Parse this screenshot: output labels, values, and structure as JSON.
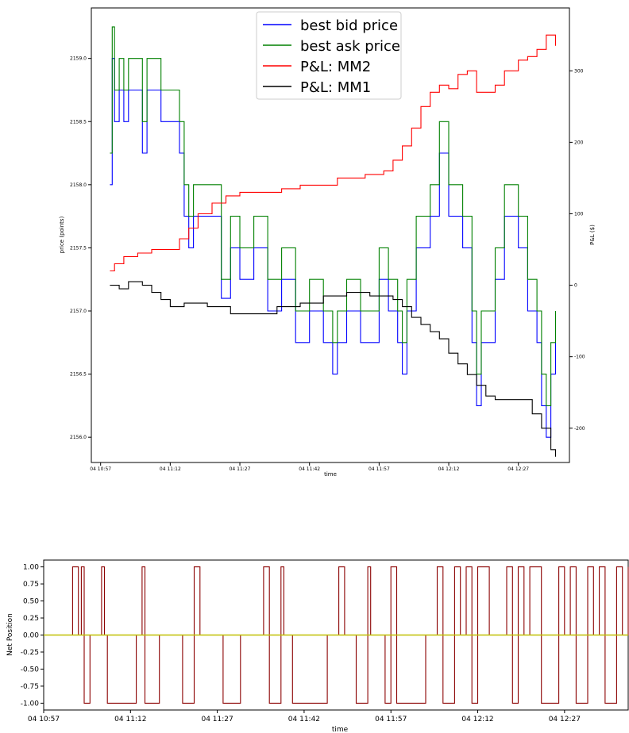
{
  "chart_data": [
    {
      "type": "line",
      "title": "",
      "xlabel": "time",
      "ylabel": "price (points)",
      "y2label": "P&L ($)",
      "x_ticks": [
        "04 10:57",
        "04 11:12",
        "04 11:27",
        "04 11:42",
        "04 11:57",
        "04 12:12",
        "04 12:27"
      ],
      "x_range": [
        "10:55",
        "12:38"
      ],
      "y_ticks": [
        "2156.0",
        "2156.5",
        "2157.0",
        "2157.5",
        "2158.0",
        "2158.5",
        "2159.0"
      ],
      "y2_ticks": [
        "-200",
        "-100",
        "0",
        "100",
        "200",
        "300"
      ],
      "ylim": [
        2155.8,
        2159.4
      ],
      "y2lim": [
        -248,
        388
      ],
      "grid": false,
      "legend_position": "top-center",
      "series": [
        {
          "name": "best bid price",
          "axis": "left",
          "color": "#0000ff",
          "points": [
            [
              "10:59",
              2158.0
            ],
            [
              "10:59.5",
              2159.0
            ],
            [
              "11:00",
              2158.5
            ],
            [
              "11:01",
              2158.75
            ],
            [
              "11:02",
              2158.5
            ],
            [
              "11:03",
              2158.75
            ],
            [
              "11:06",
              2158.25
            ],
            [
              "11:07",
              2158.75
            ],
            [
              "11:10",
              2158.5
            ],
            [
              "11:13",
              2158.5
            ],
            [
              "11:14",
              2158.25
            ],
            [
              "11:15",
              2157.75
            ],
            [
              "11:16",
              2157.5
            ],
            [
              "11:17",
              2157.75
            ],
            [
              "11:22",
              2157.75
            ],
            [
              "11:23",
              2157.1
            ],
            [
              "11:25",
              2157.5
            ],
            [
              "11:27",
              2157.25
            ],
            [
              "11:30",
              2157.5
            ],
            [
              "11:33",
              2157.0
            ],
            [
              "11:36",
              2157.25
            ],
            [
              "11:39",
              2156.75
            ],
            [
              "11:42",
              2157.0
            ],
            [
              "11:45",
              2156.75
            ],
            [
              "11:47",
              2156.5
            ],
            [
              "11:48",
              2156.75
            ],
            [
              "11:50",
              2157.0
            ],
            [
              "11:53",
              2156.75
            ],
            [
              "11:57",
              2157.25
            ],
            [
              "11:59",
              2157.0
            ],
            [
              "12:01",
              2156.75
            ],
            [
              "12:02",
              2156.5
            ],
            [
              "12:03",
              2157.0
            ],
            [
              "12:05",
              2157.5
            ],
            [
              "12:08",
              2157.75
            ],
            [
              "12:10",
              2158.25
            ],
            [
              "12:12",
              2157.75
            ],
            [
              "12:15",
              2157.5
            ],
            [
              "12:17",
              2156.75
            ],
            [
              "12:18",
              2156.25
            ],
            [
              "12:19",
              2156.75
            ],
            [
              "12:20",
              2156.75
            ],
            [
              "12:22",
              2157.25
            ],
            [
              "12:24",
              2157.75
            ],
            [
              "12:27",
              2157.5
            ],
            [
              "12:29",
              2157.0
            ],
            [
              "12:31",
              2156.75
            ],
            [
              "12:32",
              2156.25
            ],
            [
              "12:33",
              2156.0
            ],
            [
              "12:34",
              2156.5
            ],
            [
              "12:35",
              2156.75
            ]
          ]
        },
        {
          "name": "best ask price",
          "axis": "left",
          "color": "#008000",
          "points": [
            [
              "10:59",
              2158.25
            ],
            [
              "10:59.5",
              2159.25
            ],
            [
              "11:00",
              2158.75
            ],
            [
              "11:01",
              2159.0
            ],
            [
              "11:02",
              2158.75
            ],
            [
              "11:03",
              2159.0
            ],
            [
              "11:06",
              2158.5
            ],
            [
              "11:07",
              2159.0
            ],
            [
              "11:10",
              2158.75
            ],
            [
              "11:13",
              2158.75
            ],
            [
              "11:14",
              2158.5
            ],
            [
              "11:15",
              2158.0
            ],
            [
              "11:16",
              2157.75
            ],
            [
              "11:17",
              2158.0
            ],
            [
              "11:22",
              2158.0
            ],
            [
              "11:23",
              2157.25
            ],
            [
              "11:25",
              2157.75
            ],
            [
              "11:27",
              2157.5
            ],
            [
              "11:30",
              2157.75
            ],
            [
              "11:33",
              2157.25
            ],
            [
              "11:36",
              2157.5
            ],
            [
              "11:39",
              2157.0
            ],
            [
              "11:42",
              2157.25
            ],
            [
              "11:45",
              2157.0
            ],
            [
              "11:47",
              2156.75
            ],
            [
              "11:48",
              2157.0
            ],
            [
              "11:50",
              2157.25
            ],
            [
              "11:53",
              2157.0
            ],
            [
              "11:57",
              2157.5
            ],
            [
              "11:59",
              2157.25
            ],
            [
              "12:01",
              2157.0
            ],
            [
              "12:02",
              2156.75
            ],
            [
              "12:03",
              2157.25
            ],
            [
              "12:05",
              2157.75
            ],
            [
              "12:08",
              2158.0
            ],
            [
              "12:10",
              2158.5
            ],
            [
              "12:12",
              2158.0
            ],
            [
              "12:15",
              2157.75
            ],
            [
              "12:17",
              2157.0
            ],
            [
              "12:18",
              2156.5
            ],
            [
              "12:19",
              2157.0
            ],
            [
              "12:20",
              2157.0
            ],
            [
              "12:22",
              2157.5
            ],
            [
              "12:24",
              2158.0
            ],
            [
              "12:27",
              2157.75
            ],
            [
              "12:29",
              2157.25
            ],
            [
              "12:31",
              2157.0
            ],
            [
              "12:32",
              2156.5
            ],
            [
              "12:33",
              2156.25
            ],
            [
              "12:34",
              2156.75
            ],
            [
              "12:35",
              2157.0
            ]
          ]
        },
        {
          "name": "P&L: MM2",
          "axis": "right",
          "color": "#ff0000",
          "points": [
            [
              "10:59",
              20
            ],
            [
              "11:00",
              30
            ],
            [
              "11:02",
              40
            ],
            [
              "11:05",
              45
            ],
            [
              "11:08",
              50
            ],
            [
              "11:12",
              50
            ],
            [
              "11:14",
              65
            ],
            [
              "11:16",
              80
            ],
            [
              "11:18",
              100
            ],
            [
              "11:21",
              115
            ],
            [
              "11:24",
              125
            ],
            [
              "11:27",
              130
            ],
            [
              "11:32",
              130
            ],
            [
              "11:36",
              135
            ],
            [
              "11:40",
              140
            ],
            [
              "11:46",
              140
            ],
            [
              "11:48",
              150
            ],
            [
              "11:54",
              155
            ],
            [
              "11:58",
              160
            ],
            [
              "12:00",
              175
            ],
            [
              "12:02",
              195
            ],
            [
              "12:04",
              220
            ],
            [
              "12:06",
              250
            ],
            [
              "12:08",
              270
            ],
            [
              "12:10",
              280
            ],
            [
              "12:12",
              275
            ],
            [
              "12:14",
              295
            ],
            [
              "12:16",
              300
            ],
            [
              "12:18",
              270
            ],
            [
              "12:20",
              270
            ],
            [
              "12:22",
              280
            ],
            [
              "12:24",
              300
            ],
            [
              "12:27",
              315
            ],
            [
              "12:29",
              320
            ],
            [
              "12:31",
              330
            ],
            [
              "12:33",
              350
            ],
            [
              "12:35",
              335
            ]
          ]
        },
        {
          "name": "P&L: MM1",
          "axis": "right",
          "color": "#000000",
          "points": [
            [
              "10:59",
              0
            ],
            [
              "11:01",
              -5
            ],
            [
              "11:03",
              5
            ],
            [
              "11:06",
              0
            ],
            [
              "11:08",
              -10
            ],
            [
              "11:10",
              -20
            ],
            [
              "11:12",
              -30
            ],
            [
              "11:15",
              -25
            ],
            [
              "11:20",
              -30
            ],
            [
              "11:25",
              -40
            ],
            [
              "11:30",
              -40
            ],
            [
              "11:35",
              -30
            ],
            [
              "11:40",
              -25
            ],
            [
              "11:45",
              -15
            ],
            [
              "11:50",
              -10
            ],
            [
              "11:55",
              -15
            ],
            [
              "12:00",
              -20
            ],
            [
              "12:02",
              -30
            ],
            [
              "12:04",
              -45
            ],
            [
              "12:06",
              -55
            ],
            [
              "12:08",
              -65
            ],
            [
              "12:10",
              -75
            ],
            [
              "12:12",
              -95
            ],
            [
              "12:14",
              -110
            ],
            [
              "12:16",
              -125
            ],
            [
              "12:18",
              -140
            ],
            [
              "12:20",
              -155
            ],
            [
              "12:22",
              -160
            ],
            [
              "12:26",
              -160
            ],
            [
              "12:29",
              -160
            ],
            [
              "12:30",
              -180
            ],
            [
              "12:32",
              -200
            ],
            [
              "12:34",
              -230
            ],
            [
              "12:35",
              -240
            ]
          ]
        }
      ]
    },
    {
      "type": "line",
      "title": "",
      "xlabel": "time",
      "ylabel": "Net Position",
      "x_ticks": [
        "04 10:57",
        "04 11:12",
        "04 11:27",
        "04 11:42",
        "04 11:57",
        "04 12:12",
        "04 12:27"
      ],
      "x_range": [
        "10:57",
        "12:38"
      ],
      "y_ticks": [
        "1.00",
        "0.75",
        "0.50",
        "0.25",
        "0.00",
        "-0.25",
        "-0.50",
        "-0.75",
        "-1.00"
      ],
      "ylim": [
        -1.1,
        1.1
      ],
      "grid": false,
      "series": [
        {
          "name": "",
          "color": "#8b0000",
          "steps": [
            [
              "10:57",
              0
            ],
            [
              "11:02",
              1
            ],
            [
              "11:03",
              0
            ],
            [
              "11:03.5",
              1
            ],
            [
              "11:04",
              -1
            ],
            [
              "11:05",
              0
            ],
            [
              "11:07",
              1
            ],
            [
              "11:07.5",
              0
            ],
            [
              "11:08",
              -1
            ],
            [
              "11:13",
              0
            ],
            [
              "11:14",
              1
            ],
            [
              "11:14.5",
              -1
            ],
            [
              "11:17",
              0
            ],
            [
              "11:21",
              -1
            ],
            [
              "11:23",
              1
            ],
            [
              "11:24",
              0
            ],
            [
              "11:28",
              -1
            ],
            [
              "11:31",
              0
            ],
            [
              "11:35",
              1
            ],
            [
              "11:36",
              -1
            ],
            [
              "11:38",
              1
            ],
            [
              "11:38.5",
              0
            ],
            [
              "11:40",
              -1
            ],
            [
              "11:46",
              0
            ],
            [
              "11:48",
              1
            ],
            [
              "11:49",
              0
            ],
            [
              "11:51",
              -1
            ],
            [
              "11:53",
              1
            ],
            [
              "11:53.5",
              0
            ],
            [
              "11:56",
              -1
            ],
            [
              "11:57",
              1
            ],
            [
              "11:58",
              -1
            ],
            [
              "12:03",
              0
            ],
            [
              "12:05",
              1
            ],
            [
              "12:06",
              -1
            ],
            [
              "12:08",
              1
            ],
            [
              "12:09",
              0
            ],
            [
              "12:10",
              1
            ],
            [
              "12:11",
              -1
            ],
            [
              "12:12",
              1
            ],
            [
              "12:14",
              0
            ],
            [
              "12:17",
              1
            ],
            [
              "12:18",
              -1
            ],
            [
              "12:19",
              1
            ],
            [
              "12:20",
              0
            ],
            [
              "12:21",
              1
            ],
            [
              "12:23",
              -1
            ],
            [
              "12:26",
              1
            ],
            [
              "12:27",
              0
            ],
            [
              "12:28",
              1
            ],
            [
              "12:29",
              -1
            ],
            [
              "12:31",
              1
            ],
            [
              "12:32",
              0
            ],
            [
              "12:33",
              1
            ],
            [
              "12:34",
              -1
            ],
            [
              "12:36",
              1
            ],
            [
              "12:37",
              0
            ],
            [
              "12:38",
              1
            ]
          ]
        },
        {
          "name": "",
          "color": "#bfbf00",
          "points": [
            [
              "10:57",
              0
            ],
            [
              "12:38",
              0
            ]
          ]
        }
      ]
    }
  ]
}
